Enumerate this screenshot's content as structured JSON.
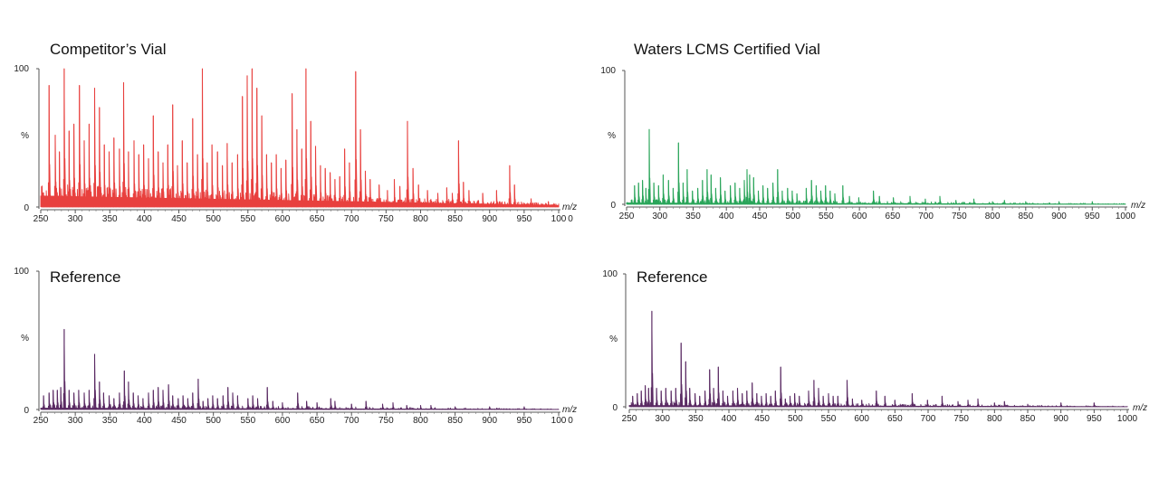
{
  "chart_data": [
    {
      "type": "line",
      "title": "Competitor’s Vial",
      "xlabel": "m/z",
      "ylabel": "%",
      "xlim": [
        250,
        1000
      ],
      "ylim": [
        0,
        100
      ],
      "x_tick_labels": [
        "250",
        "300",
        "350",
        "400",
        "450",
        "500",
        "550",
        "600",
        "650",
        "700",
        "750",
        "800",
        "850",
        "900",
        "950",
        "100",
        "0"
      ],
      "y_tick_labels": [
        "0",
        "%",
        "100"
      ],
      "color": "#e8403e",
      "baseline": 8,
      "noise": 9,
      "density": 0.45,
      "peaks": [
        [
          262,
          88
        ],
        [
          271,
          52
        ],
        [
          277,
          40
        ],
        [
          284,
          100
        ],
        [
          291,
          55
        ],
        [
          298,
          60
        ],
        [
          306,
          88
        ],
        [
          313,
          48
        ],
        [
          320,
          60
        ],
        [
          328,
          86
        ],
        [
          335,
          72
        ],
        [
          342,
          45
        ],
        [
          349,
          40
        ],
        [
          356,
          50
        ],
        [
          364,
          42
        ],
        [
          370,
          90
        ],
        [
          377,
          40
        ],
        [
          385,
          48
        ],
        [
          392,
          38
        ],
        [
          399,
          45
        ],
        [
          406,
          35
        ],
        [
          413,
          66
        ],
        [
          420,
          40
        ],
        [
          427,
          32
        ],
        [
          434,
          45
        ],
        [
          441,
          74
        ],
        [
          448,
          30
        ],
        [
          455,
          48
        ],
        [
          462,
          32
        ],
        [
          470,
          64
        ],
        [
          477,
          38
        ],
        [
          484,
          100
        ],
        [
          491,
          32
        ],
        [
          498,
          45
        ],
        [
          506,
          40
        ],
        [
          513,
          30
        ],
        [
          520,
          46
        ],
        [
          527,
          32
        ],
        [
          535,
          38
        ],
        [
          542,
          80
        ],
        [
          549,
          95
        ],
        [
          556,
          100
        ],
        [
          563,
          86
        ],
        [
          570,
          66
        ],
        [
          577,
          38
        ],
        [
          584,
          32
        ],
        [
          591,
          38
        ],
        [
          598,
          28
        ],
        [
          605,
          34
        ],
        [
          614,
          82
        ],
        [
          621,
          56
        ],
        [
          628,
          42
        ],
        [
          634,
          100
        ],
        [
          641,
          62
        ],
        [
          648,
          44
        ],
        [
          655,
          30
        ],
        [
          662,
          28
        ],
        [
          669,
          25
        ],
        [
          676,
          20
        ],
        [
          683,
          22
        ],
        [
          690,
          42
        ],
        [
          697,
          32
        ],
        [
          706,
          98
        ],
        [
          713,
          56
        ],
        [
          720,
          26
        ],
        [
          727,
          20
        ],
        [
          740,
          16
        ],
        [
          752,
          12
        ],
        [
          762,
          20
        ],
        [
          770,
          15
        ],
        [
          781,
          62
        ],
        [
          789,
          28
        ],
        [
          797,
          16
        ],
        [
          810,
          12
        ],
        [
          825,
          10
        ],
        [
          838,
          14
        ],
        [
          846,
          10
        ],
        [
          855,
          48
        ],
        [
          862,
          18
        ],
        [
          870,
          12
        ],
        [
          890,
          10
        ],
        [
          910,
          12
        ],
        [
          929,
          30
        ],
        [
          936,
          16
        ],
        [
          960,
          6
        ],
        [
          985,
          4
        ]
      ]
    },
    {
      "type": "line",
      "title": "Waters LCMS Certified Vial",
      "xlabel": "m/z",
      "ylabel": "%",
      "xlim": [
        250,
        1000
      ],
      "ylim": [
        0,
        100
      ],
      "x_tick_labels": [
        "250",
        "300",
        "350",
        "400",
        "450",
        "500",
        "550",
        "600",
        "650",
        "700",
        "750",
        "800",
        "850",
        "900",
        "950",
        "1000"
      ],
      "y_tick_labels": [
        "0",
        "%",
        "100"
      ],
      "color": "#2aa55a",
      "baseline": 1,
      "noise": 3,
      "density": 0.3,
      "peaks": [
        [
          262,
          14
        ],
        [
          268,
          16
        ],
        [
          274,
          18
        ],
        [
          279,
          12
        ],
        [
          284,
          56
        ],
        [
          291,
          16
        ],
        [
          298,
          14
        ],
        [
          305,
          22
        ],
        [
          313,
          18
        ],
        [
          320,
          12
        ],
        [
          328,
          46
        ],
        [
          335,
          16
        ],
        [
          341,
          26
        ],
        [
          349,
          10
        ],
        [
          357,
          12
        ],
        [
          364,
          18
        ],
        [
          371,
          26
        ],
        [
          377,
          22
        ],
        [
          384,
          12
        ],
        [
          391,
          20
        ],
        [
          398,
          10
        ],
        [
          406,
          14
        ],
        [
          413,
          16
        ],
        [
          420,
          12
        ],
        [
          427,
          18
        ],
        [
          431,
          26
        ],
        [
          435,
          22
        ],
        [
          441,
          20
        ],
        [
          448,
          10
        ],
        [
          455,
          14
        ],
        [
          462,
          12
        ],
        [
          470,
          16
        ],
        [
          477,
          26
        ],
        [
          484,
          10
        ],
        [
          492,
          12
        ],
        [
          499,
          10
        ],
        [
          506,
          8
        ],
        [
          520,
          12
        ],
        [
          528,
          18
        ],
        [
          535,
          14
        ],
        [
          542,
          10
        ],
        [
          549,
          14
        ],
        [
          556,
          10
        ],
        [
          563,
          8
        ],
        [
          575,
          14
        ],
        [
          585,
          6
        ],
        [
          599,
          5
        ],
        [
          621,
          10
        ],
        [
          630,
          6
        ],
        [
          651,
          5
        ],
        [
          676,
          6
        ],
        [
          699,
          4
        ],
        [
          721,
          6
        ],
        [
          745,
          3
        ],
        [
          772,
          4
        ],
        [
          800,
          2
        ],
        [
          818,
          3
        ],
        [
          850,
          2
        ],
        [
          900,
          2
        ],
        [
          950,
          2
        ]
      ]
    },
    {
      "type": "line",
      "title": "Reference",
      "xlabel": "m/z",
      "ylabel": "%",
      "xlim": [
        250,
        1000
      ],
      "ylim": [
        0,
        100
      ],
      "x_tick_labels": [
        "250",
        "300",
        "350",
        "400",
        "450",
        "500",
        "550",
        "600",
        "650",
        "700",
        "750",
        "800",
        "850",
        "900",
        "950",
        "100",
        "0"
      ],
      "y_tick_labels": [
        "0",
        "%",
        "100"
      ],
      "color": "#5a2a63",
      "baseline": 1,
      "noise": 3,
      "density": 0.3,
      "peaks": [
        [
          254,
          10
        ],
        [
          262,
          12
        ],
        [
          268,
          14
        ],
        [
          274,
          14
        ],
        [
          279,
          16
        ],
        [
          284,
          58
        ],
        [
          291,
          14
        ],
        [
          298,
          12
        ],
        [
          305,
          14
        ],
        [
          313,
          12
        ],
        [
          320,
          14
        ],
        [
          328,
          40
        ],
        [
          335,
          20
        ],
        [
          341,
          12
        ],
        [
          349,
          10
        ],
        [
          356,
          8
        ],
        [
          364,
          12
        ],
        [
          371,
          28
        ],
        [
          377,
          20
        ],
        [
          384,
          12
        ],
        [
          391,
          10
        ],
        [
          398,
          8
        ],
        [
          406,
          12
        ],
        [
          413,
          14
        ],
        [
          420,
          16
        ],
        [
          427,
          14
        ],
        [
          435,
          18
        ],
        [
          441,
          10
        ],
        [
          449,
          8
        ],
        [
          456,
          10
        ],
        [
          463,
          8
        ],
        [
          470,
          12
        ],
        [
          478,
          22
        ],
        [
          485,
          6
        ],
        [
          492,
          8
        ],
        [
          499,
          10
        ],
        [
          506,
          8
        ],
        [
          514,
          10
        ],
        [
          521,
          16
        ],
        [
          528,
          12
        ],
        [
          535,
          10
        ],
        [
          550,
          8
        ],
        [
          557,
          10
        ],
        [
          564,
          8
        ],
        [
          578,
          16
        ],
        [
          586,
          6
        ],
        [
          600,
          5
        ],
        [
          622,
          12
        ],
        [
          635,
          6
        ],
        [
          650,
          5
        ],
        [
          670,
          8
        ],
        [
          676,
          6
        ],
        [
          700,
          4
        ],
        [
          721,
          6
        ],
        [
          745,
          4
        ],
        [
          760,
          5
        ],
        [
          780,
          3
        ],
        [
          800,
          3
        ],
        [
          815,
          3
        ],
        [
          850,
          2
        ],
        [
          900,
          2
        ],
        [
          950,
          2
        ]
      ]
    },
    {
      "type": "line",
      "title": "Reference",
      "xlabel": "m/z",
      "ylabel": "%",
      "xlim": [
        250,
        1000
      ],
      "ylim": [
        0,
        100
      ],
      "x_tick_labels": [
        "250",
        "300",
        "350",
        "400",
        "450",
        "500",
        "550",
        "600",
        "650",
        "700",
        "750",
        "800",
        "850",
        "900",
        "950",
        "1000"
      ],
      "y_tick_labels": [
        "0",
        "%",
        "100"
      ],
      "color": "#5a2a63",
      "baseline": 1,
      "noise": 3,
      "density": 0.3,
      "peaks": [
        [
          255,
          8
        ],
        [
          262,
          10
        ],
        [
          268,
          12
        ],
        [
          274,
          16
        ],
        [
          279,
          14
        ],
        [
          284,
          72
        ],
        [
          291,
          14
        ],
        [
          298,
          12
        ],
        [
          305,
          14
        ],
        [
          313,
          12
        ],
        [
          320,
          14
        ],
        [
          328,
          48
        ],
        [
          335,
          34
        ],
        [
          341,
          14
        ],
        [
          349,
          10
        ],
        [
          356,
          8
        ],
        [
          364,
          12
        ],
        [
          371,
          28
        ],
        [
          377,
          14
        ],
        [
          384,
          30
        ],
        [
          391,
          12
        ],
        [
          398,
          8
        ],
        [
          406,
          12
        ],
        [
          413,
          14
        ],
        [
          420,
          10
        ],
        [
          427,
          12
        ],
        [
          435,
          18
        ],
        [
          442,
          10
        ],
        [
          449,
          8
        ],
        [
          456,
          10
        ],
        [
          463,
          8
        ],
        [
          470,
          12
        ],
        [
          478,
          30
        ],
        [
          485,
          6
        ],
        [
          492,
          8
        ],
        [
          499,
          10
        ],
        [
          506,
          8
        ],
        [
          520,
          12
        ],
        [
          528,
          20
        ],
        [
          535,
          14
        ],
        [
          542,
          8
        ],
        [
          550,
          10
        ],
        [
          557,
          8
        ],
        [
          564,
          8
        ],
        [
          578,
          20
        ],
        [
          586,
          6
        ],
        [
          600,
          5
        ],
        [
          622,
          12
        ],
        [
          635,
          8
        ],
        [
          650,
          5
        ],
        [
          676,
          10
        ],
        [
          699,
          5
        ],
        [
          721,
          8
        ],
        [
          745,
          4
        ],
        [
          760,
          5
        ],
        [
          775,
          6
        ],
        [
          800,
          3
        ],
        [
          815,
          4
        ],
        [
          850,
          2
        ],
        [
          900,
          3
        ],
        [
          950,
          3
        ]
      ]
    }
  ]
}
